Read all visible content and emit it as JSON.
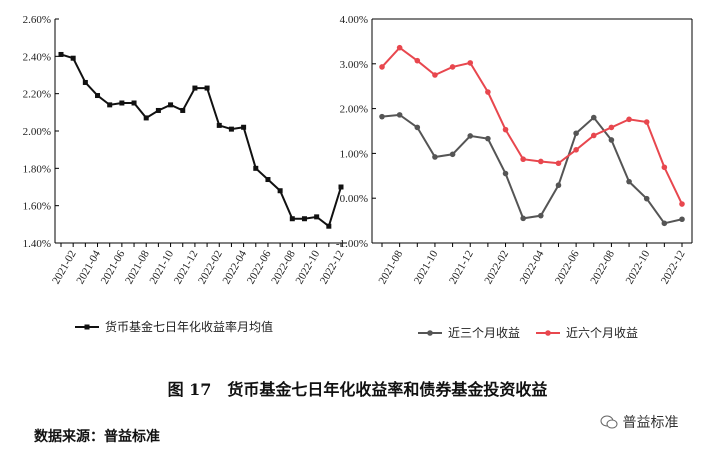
{
  "chart_data": [
    {
      "type": "line",
      "categories": [
        null,
        "2021-02",
        null,
        "2021-04",
        null,
        "2021-06",
        null,
        "2021-08",
        null,
        "2021-10",
        null,
        "2021-12",
        null,
        "2022-02",
        null,
        "2022-04",
        null,
        "2022-06",
        null,
        "2022-08",
        null,
        "2022-10",
        null,
        "2022-12"
      ],
      "series": [
        {
          "name": "货币基金七日年化收益率月均值",
          "color": "#111111",
          "marker": "square",
          "values": [
            2.41,
            2.39,
            2.26,
            2.19,
            2.14,
            2.15,
            2.15,
            2.07,
            2.11,
            2.14,
            2.11,
            2.23,
            2.23,
            2.03,
            2.01,
            2.02,
            1.8,
            1.74,
            1.68,
            1.53,
            1.53,
            1.54,
            1.49,
            1.7
          ]
        }
      ],
      "ylim": [
        1.4,
        2.6
      ],
      "yticks": [
        {
          "value": 1.4,
          "label": "1.40%"
        },
        {
          "value": 1.6,
          "label": "1.60%"
        },
        {
          "value": 1.8,
          "label": "1.80%"
        },
        {
          "value": 2.0,
          "label": "2.00%"
        },
        {
          "value": 2.2,
          "label": "2.20%"
        },
        {
          "value": 2.4,
          "label": "2.40%"
        },
        {
          "value": 2.6,
          "label": "2.60%"
        }
      ],
      "grid": false
    },
    {
      "type": "line",
      "categories": [
        null,
        "2021-08",
        null,
        "2021-10",
        null,
        "2021-12",
        null,
        "2022-02",
        null,
        "2022-04",
        null,
        "2022-06",
        null,
        "2022-08",
        null,
        "2022-10",
        null,
        "2022-12"
      ],
      "series": [
        {
          "name": "近三个月收益",
          "color": "#555555",
          "marker": "circle",
          "values": [
            1.82,
            1.86,
            1.58,
            0.92,
            0.98,
            1.39,
            1.33,
            0.55,
            -0.45,
            -0.39,
            0.29,
            1.45,
            1.8,
            1.3,
            0.37,
            -0.01,
            -0.56,
            -0.47
          ]
        },
        {
          "name": "近六个月收益",
          "color": "#e8474e",
          "marker": "circle",
          "values": [
            2.93,
            3.36,
            3.07,
            2.75,
            2.93,
            3.02,
            2.37,
            1.53,
            0.87,
            0.82,
            0.78,
            1.08,
            1.4,
            1.58,
            1.76,
            1.7,
            0.69,
            -0.13
          ]
        }
      ],
      "ylim": [
        -1,
        4
      ],
      "yticks": [
        {
          "value": -1,
          "label": "-1.00%"
        },
        {
          "value": 0,
          "label": "0.00%"
        },
        {
          "value": 1,
          "label": "1.00%"
        },
        {
          "value": 2,
          "label": "2.00%"
        },
        {
          "value": 3,
          "label": "3.00%"
        },
        {
          "value": 4,
          "label": "4.00%"
        }
      ],
      "grid": false
    }
  ],
  "caption": "图 17　货币基金七日年化收益率和债券基金投资收益",
  "source": "数据来源：普益标准",
  "watermark": "普益标准"
}
